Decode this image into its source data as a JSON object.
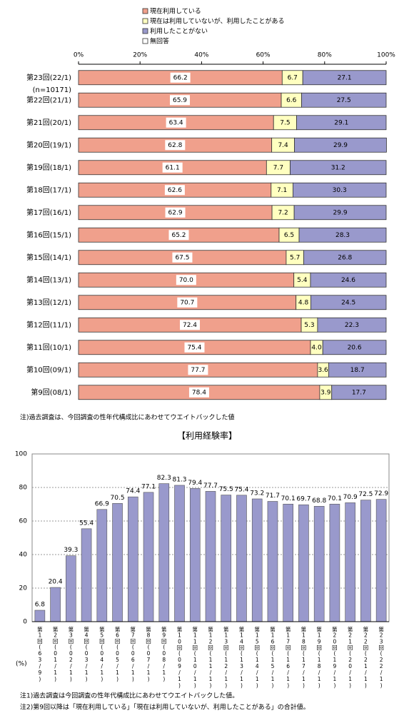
{
  "chart_data": [
    {
      "type": "stacked-hbar",
      "categories": [
        "第23回(22/1)",
        "第22回(21/1)",
        "第21回(20/1)",
        "第20回(19/1)",
        "第19回(18/1)",
        "第18回(17/1)",
        "第17回(16/1)",
        "第16回(15/1)",
        "第15回(14/1)",
        "第14回(13/1)",
        "第13回(12/1)",
        "第12回(11/1)",
        "第11回(10/1)",
        "第10回(09/1)",
        "第9回(08/1)"
      ],
      "sample_size_label": "(n=10171)",
      "series": [
        {
          "name": "現在利用している",
          "color": "#f0a08c",
          "values": [
            66.2,
            65.9,
            63.4,
            62.8,
            61.1,
            62.6,
            62.9,
            65.2,
            67.5,
            70.0,
            70.7,
            72.4,
            75.4,
            77.7,
            78.4
          ],
          "value_labels": [
            "66.2",
            "65.9",
            "63.4",
            "62.8",
            "61.1",
            "62.6",
            "62.9",
            "65.2",
            "67.5",
            "70.0",
            "70.7",
            "72.4",
            "75.4",
            "77.7",
            "78.4"
          ]
        },
        {
          "name": "現在は利用していないが、利用したことがある",
          "color": "#ffffc0",
          "values": [
            6.7,
            6.6,
            7.5,
            7.4,
            7.7,
            7.1,
            7.2,
            6.5,
            5.7,
            5.4,
            4.8,
            5.3,
            4.0,
            3.6,
            3.9
          ],
          "value_labels": [
            "6.7",
            "6.6",
            "7.5",
            "7.4",
            "7.7",
            "7.1",
            "7.2",
            "6.5",
            "5.7",
            "5.4",
            "4.8",
            "5.3",
            "4.0",
            "3.6",
            "3.9"
          ]
        },
        {
          "name": "利用したことがない",
          "color": "#9999cc",
          "values": [
            27.1,
            27.5,
            29.1,
            29.9,
            31.2,
            30.3,
            29.9,
            28.3,
            26.8,
            24.6,
            24.5,
            22.3,
            20.6,
            18.7,
            17.7
          ],
          "value_labels": [
            "27.1",
            "27.5",
            "29.1",
            "29.9",
            "31.2",
            "30.3",
            "29.9",
            "28.3",
            "26.8",
            "24.6",
            "24.5",
            "22.3",
            "20.6",
            "18.7",
            "17.7"
          ]
        },
        {
          "name": "無回答",
          "color": "#ffffff",
          "values": [
            0,
            0,
            0,
            0,
            0,
            0,
            0,
            0,
            0,
            0,
            0,
            0,
            0,
            0,
            0
          ]
        }
      ],
      "xlim": [
        0,
        100
      ],
      "xticks": [
        {
          "value": 0,
          "label": "0%"
        },
        {
          "value": 20,
          "label": "20%"
        },
        {
          "value": 40,
          "label": "40%"
        },
        {
          "value": 60,
          "label": "60%"
        },
        {
          "value": 80,
          "label": "80%"
        },
        {
          "value": 100,
          "label": "100%"
        }
      ],
      "legend": "top",
      "note": "注)過去調査は、今回調査の性年代構成比にあわせてウエイトバックした値"
    },
    {
      "type": "bar",
      "title": "【利用経験率】",
      "y_unit": "(%)",
      "categories": [
        "第1回(63/9)",
        "第2回(01/1)",
        "第3回(02/1)",
        "第4回(03/1)",
        "第5回(04/1)",
        "第6回(05/1)",
        "第7回(06/1)",
        "第8回(07/1)",
        "第9回(08/1)",
        "第10回(09/1)",
        "第11回(10/1)",
        "第12回(11/1)",
        "第13回(12/1)",
        "第14回(13/1)",
        "第15回(14/1)",
        "第16回(15/1)",
        "第17回(16/1)",
        "第18回(17/1)",
        "第19回(18/1)",
        "第20回(19/1)",
        "第21回(20/1)",
        "第22回(21/1)",
        "第23回(22/1)"
      ],
      "values": [
        6.8,
        20.4,
        39.3,
        55.4,
        66.9,
        70.5,
        74.4,
        77.1,
        82.3,
        81.3,
        79.4,
        77.7,
        75.5,
        75.4,
        73.2,
        71.7,
        70.1,
        69.7,
        68.8,
        70.1,
        70.9,
        72.5,
        72.9
      ],
      "color": "#9999cc",
      "ylim": [
        0,
        100
      ],
      "yticks": [
        0,
        20,
        40,
        60,
        80,
        100
      ],
      "grid": true,
      "notes": [
        "注1)過去調査は今回調査の性年代構成比にあわせてウエイトバックした値。",
        "注2)第9回以降は「現在利用している」「現在は利用していないが、利用したことがある」の合計値。"
      ]
    }
  ]
}
